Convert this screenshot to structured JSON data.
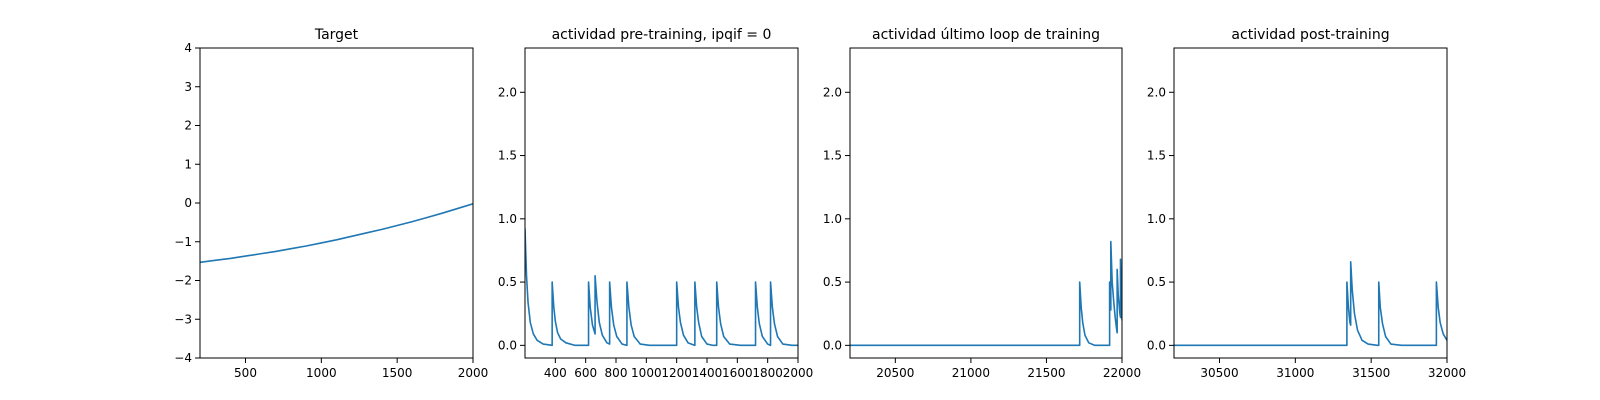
{
  "chart_data": [
    {
      "type": "line",
      "title": "Target",
      "xlim": [
        200,
        2000
      ],
      "ylim": [
        -4,
        4
      ],
      "xticks": [
        500,
        1000,
        1500,
        2000
      ],
      "xtick_labels": [
        "500",
        "1000",
        "1500",
        "2000"
      ],
      "yticks": [
        -4,
        -3,
        -2,
        -1,
        0,
        1,
        2,
        3,
        4
      ],
      "ytick_labels": [
        "−4",
        "−3",
        "−2",
        "−1",
        "0",
        "1",
        "2",
        "3",
        "4"
      ],
      "series": [
        {
          "color": "#1f77b4",
          "x": [
            200,
            300,
            400,
            500,
            600,
            700,
            800,
            900,
            1000,
            1100,
            1200,
            1300,
            1400,
            1500,
            1600,
            1700,
            1800,
            1900,
            2000
          ],
          "y": [
            -1.53,
            -1.48,
            -1.43,
            -1.37,
            -1.31,
            -1.25,
            -1.18,
            -1.11,
            -1.03,
            -0.95,
            -0.86,
            -0.77,
            -0.68,
            -0.58,
            -0.48,
            -0.37,
            -0.26,
            -0.14,
            -0.02
          ]
        }
      ]
    },
    {
      "type": "line",
      "title": "actividad pre-training, ipqif = 0",
      "xlim": [
        200,
        2000
      ],
      "ylim": [
        -0.1,
        2.35
      ],
      "xticks": [
        400,
        600,
        800,
        1000,
        1200,
        1400,
        1600,
        1800,
        2000
      ],
      "xtick_labels": [
        "400",
        "600",
        "800",
        "1000",
        "1200",
        "1400",
        "1600",
        "1800",
        "2000"
      ],
      "yticks": [
        0.0,
        0.5,
        1.0,
        1.5,
        2.0
      ],
      "ytick_labels": [
        "0.0",
        "0.5",
        "1.0",
        "1.5",
        "2.0"
      ],
      "series": [
        {
          "color": "#1f77b4",
          "x": [
            200,
            210,
            220,
            235,
            255,
            280,
            320,
            379,
            379,
            390,
            400,
            415,
            435,
            470,
            530,
            619,
            619,
            630,
            645,
            662,
            662,
            675,
            690,
            710,
            740,
            758,
            758,
            770,
            785,
            805,
            840,
            872,
            872,
            885,
            900,
            920,
            960,
            1020,
            1100,
            1200,
            1200,
            1212,
            1225,
            1245,
            1275,
            1320,
            1320,
            1332,
            1345,
            1365,
            1400,
            1440,
            1464,
            1464,
            1476,
            1490,
            1510,
            1550,
            1620,
            1720,
            1720,
            1732,
            1745,
            1765,
            1800,
            1819,
            1819,
            1831,
            1845,
            1865,
            1900,
            1960,
            2000
          ],
          "y": [
            0.92,
            0.55,
            0.34,
            0.18,
            0.09,
            0.04,
            0.01,
            0.0,
            0.5,
            0.3,
            0.19,
            0.1,
            0.05,
            0.02,
            0.0,
            0.0,
            0.5,
            0.3,
            0.16,
            0.09,
            0.55,
            0.34,
            0.18,
            0.08,
            0.02,
            0.01,
            0.5,
            0.3,
            0.16,
            0.07,
            0.01,
            0.0,
            0.5,
            0.3,
            0.16,
            0.07,
            0.01,
            0.0,
            0.0,
            0.0,
            0.5,
            0.3,
            0.18,
            0.08,
            0.02,
            0.0,
            0.5,
            0.3,
            0.18,
            0.07,
            0.01,
            0.0,
            0.0,
            0.5,
            0.3,
            0.17,
            0.07,
            0.01,
            0.0,
            0.0,
            0.5,
            0.3,
            0.17,
            0.07,
            0.01,
            0.0,
            0.5,
            0.3,
            0.17,
            0.07,
            0.01,
            0.0,
            0.0
          ]
        }
      ]
    },
    {
      "type": "line",
      "title": "actividad último loop de training",
      "xlim": [
        20200,
        22000
      ],
      "ylim": [
        -0.1,
        2.35
      ],
      "xticks": [
        20500,
        21000,
        21500,
        22000
      ],
      "xtick_labels": [
        "20500",
        "21000",
        "21500",
        "22000"
      ],
      "yticks": [
        0.0,
        0.5,
        1.0,
        1.5,
        2.0
      ],
      "ytick_labels": [
        "0.0",
        "0.5",
        "1.0",
        "1.5",
        "2.0"
      ],
      "series": [
        {
          "color": "#1f77b4",
          "x": [
            20200,
            20500,
            21000,
            21500,
            21720,
            21720,
            21730,
            21740,
            21755,
            21780,
            21820,
            21900,
            21918,
            21918,
            21922,
            21926,
            21926,
            21935,
            21945,
            21955,
            21965,
            21968,
            21968,
            21975,
            21985,
            21990,
            21990,
            21995,
            22000
          ],
          "y": [
            0.0,
            0.0,
            0.0,
            0.0,
            0.0,
            0.5,
            0.3,
            0.18,
            0.08,
            0.02,
            0.0,
            0.0,
            0.0,
            0.5,
            0.3,
            0.28,
            0.82,
            0.5,
            0.35,
            0.22,
            0.12,
            0.1,
            0.6,
            0.4,
            0.26,
            0.22,
            0.68,
            0.4,
            0.2
          ]
        }
      ]
    },
    {
      "type": "line",
      "title": "actividad post-training",
      "xlim": [
        30200,
        32000
      ],
      "ylim": [
        -0.1,
        2.35
      ],
      "xticks": [
        30500,
        31000,
        31500,
        32000
      ],
      "xtick_labels": [
        "30500",
        "31000",
        "31500",
        "32000"
      ],
      "yticks": [
        0.0,
        0.5,
        1.0,
        1.5,
        2.0
      ],
      "ytick_labels": [
        "0.0",
        "0.5",
        "1.0",
        "1.5",
        "2.0"
      ],
      "series": [
        {
          "color": "#1f77b4",
          "x": [
            30200,
            30600,
            31000,
            31340,
            31340,
            31350,
            31360,
            31365,
            31365,
            31375,
            31390,
            31410,
            31440,
            31480,
            31540,
            31550,
            31550,
            31560,
            31575,
            31595,
            31630,
            31700,
            31800,
            31930,
            31930,
            31942,
            31955,
            31975,
            32000
          ],
          "y": [
            0.0,
            0.0,
            0.0,
            0.0,
            0.5,
            0.3,
            0.18,
            0.16,
            0.66,
            0.44,
            0.25,
            0.12,
            0.04,
            0.01,
            0.0,
            0.0,
            0.5,
            0.3,
            0.17,
            0.07,
            0.01,
            0.0,
            0.0,
            0.0,
            0.5,
            0.3,
            0.18,
            0.09,
            0.04
          ]
        }
      ]
    }
  ]
}
